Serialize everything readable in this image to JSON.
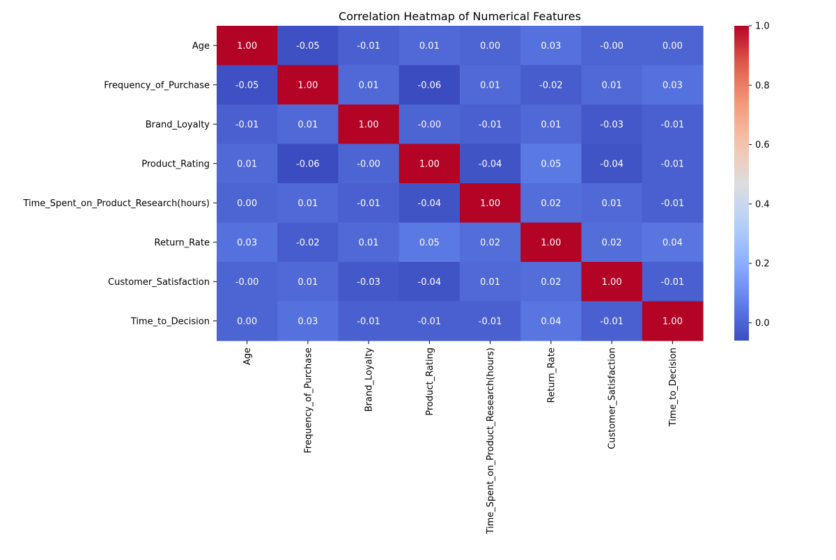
{
  "chart_data": {
    "type": "heatmap",
    "title": "Correlation Heatmap of Numerical Features",
    "xlabel": "",
    "ylabel": "",
    "labels": [
      "Age",
      "Frequency_of_Purchase",
      "Brand_Loyalty",
      "Product_Rating",
      "Time_Spent_on_Product_Research(hours)",
      "Return_Rate",
      "Customer_Satisfaction",
      "Time_to_Decision"
    ],
    "matrix": [
      [
        1.0,
        -0.05,
        -0.01,
        0.01,
        0.0,
        0.03,
        -0.0,
        0.0
      ],
      [
        -0.05,
        1.0,
        0.01,
        -0.06,
        0.01,
        -0.02,
        0.01,
        0.03
      ],
      [
        -0.01,
        0.01,
        1.0,
        -0.0,
        -0.01,
        0.01,
        -0.03,
        -0.01
      ],
      [
        0.01,
        -0.06,
        -0.0,
        1.0,
        -0.04,
        0.05,
        -0.04,
        -0.01
      ],
      [
        0.0,
        0.01,
        -0.01,
        -0.04,
        1.0,
        0.02,
        0.01,
        -0.01
      ],
      [
        0.03,
        -0.02,
        0.01,
        0.05,
        0.02,
        1.0,
        0.02,
        0.04
      ],
      [
        -0.0,
        0.01,
        -0.03,
        -0.04,
        0.01,
        0.02,
        1.0,
        -0.01
      ],
      [
        0.0,
        0.03,
        -0.01,
        -0.01,
        -0.01,
        0.04,
        -0.01,
        1.0
      ]
    ],
    "colormap": "coolwarm",
    "vmin": -0.06,
    "vmax": 1.0,
    "colorbar": {
      "ticks": [
        0.0,
        0.2,
        0.4,
        0.6,
        0.8,
        1.0
      ],
      "tick_labels": [
        "0.0",
        "0.2",
        "0.4",
        "0.6",
        "0.8",
        "1.0"
      ]
    },
    "annotation_format": "2 decimals",
    "grid": false,
    "colors": {
      "low": "#3b4cc0",
      "mid": "#dddddd",
      "high": "#b40426",
      "annotation_text": "#ffffff"
    }
  }
}
